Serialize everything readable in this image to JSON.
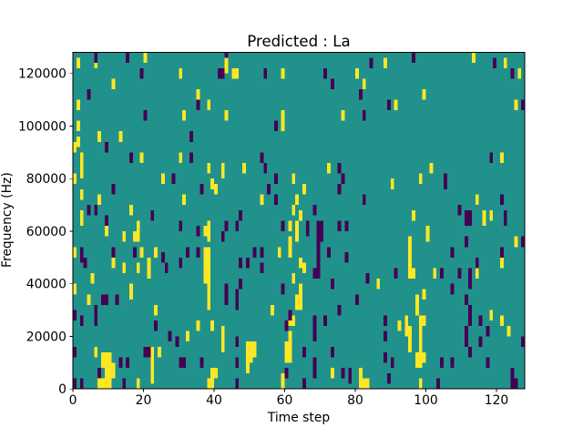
{
  "figure": {
    "title": "Predicted : La",
    "xlabel": "Time step",
    "ylabel": "Frequency (Hz)"
  },
  "chart_data": {
    "type": "heatmap",
    "title": "Predicted : La",
    "xlabel": "Time step",
    "ylabel": "Frequency (Hz)",
    "x_range": [
      0,
      128
    ],
    "y_range": [
      0,
      128000
    ],
    "xticks": [
      0,
      20,
      40,
      60,
      80,
      100,
      120
    ],
    "yticks": [
      0,
      20000,
      40000,
      60000,
      80000,
      100000,
      120000
    ],
    "grid": false,
    "legend": "none",
    "colormap": "viridis",
    "n_cols": 128,
    "n_rows": 64,
    "row_bin_hz": 2000,
    "colors": {
      "background": "#21918c",
      "high": "#fde725",
      "low": "#440154"
    },
    "values": {
      "base": 0.5,
      "high": 1.0,
      "low": 0.0
    },
    "cells": {
      "high": [
        [
          1,
          61,
          62
        ],
        [
          6,
          61,
          62
        ],
        [
          20,
          62,
          63
        ],
        [
          43,
          60,
          63
        ],
        [
          11,
          57,
          58
        ],
        [
          1,
          53,
          54
        ],
        [
          30,
          59,
          60
        ],
        [
          35,
          55,
          56
        ],
        [
          38,
          53,
          54
        ],
        [
          31,
          51,
          52
        ],
        [
          1,
          49,
          50
        ],
        [
          1,
          46,
          47
        ],
        [
          7,
          47,
          48
        ],
        [
          13,
          47,
          48
        ],
        [
          0,
          45,
          46
        ],
        [
          2,
          40,
          44
        ],
        [
          0,
          39,
          40
        ],
        [
          19,
          43,
          44
        ],
        [
          30,
          43,
          44
        ],
        [
          38,
          41,
          42
        ],
        [
          39,
          38,
          39
        ],
        [
          25,
          39,
          40
        ],
        [
          42,
          40,
          42
        ],
        [
          40,
          37,
          38
        ],
        [
          2,
          36,
          37
        ],
        [
          7,
          35,
          36
        ],
        [
          31,
          35,
          36
        ],
        [
          16,
          33,
          34
        ],
        [
          2,
          31,
          33
        ],
        [
          45,
          59,
          60
        ],
        [
          46,
          59,
          60
        ],
        [
          59,
          59,
          60
        ],
        [
          80,
          59,
          60
        ],
        [
          82,
          57,
          58
        ],
        [
          43,
          51,
          52
        ],
        [
          59,
          51,
          52
        ],
        [
          59,
          49,
          50
        ],
        [
          76,
          51,
          52
        ],
        [
          48,
          41,
          42
        ],
        [
          72,
          41,
          42
        ],
        [
          62,
          39,
          40
        ],
        [
          65,
          37,
          38
        ],
        [
          53,
          35,
          36
        ],
        [
          63,
          35,
          36
        ],
        [
          62,
          33,
          34
        ],
        [
          64,
          32,
          33
        ],
        [
          88,
          61,
          62
        ],
        [
          113,
          62,
          63
        ],
        [
          122,
          61,
          62
        ],
        [
          126,
          59,
          60
        ],
        [
          99,
          55,
          56
        ],
        [
          91,
          53,
          54
        ],
        [
          125,
          53,
          54
        ],
        [
          121,
          43,
          44
        ],
        [
          101,
          41,
          42
        ],
        [
          98,
          39,
          40
        ],
        [
          90,
          38,
          39
        ],
        [
          114,
          35,
          36
        ],
        [
          96,
          32,
          33
        ],
        [
          116,
          31,
          33
        ],
        [
          118,
          32,
          33
        ],
        [
          9,
          29,
          30
        ],
        [
          14,
          28,
          29
        ],
        [
          17,
          28,
          29
        ],
        [
          18,
          28,
          31
        ],
        [
          19,
          25,
          26
        ],
        [
          23,
          25,
          26
        ],
        [
          21,
          21,
          24
        ],
        [
          11,
          23,
          24
        ],
        [
          14,
          22,
          23
        ],
        [
          18,
          22,
          23
        ],
        [
          5,
          20,
          21
        ],
        [
          16,
          17,
          19
        ],
        [
          4,
          16,
          17
        ],
        [
          23,
          14,
          15
        ],
        [
          0,
          25,
          26
        ],
        [
          0,
          18,
          19
        ],
        [
          37,
          20,
          26
        ],
        [
          37,
          29,
          30
        ],
        [
          38,
          15,
          26
        ],
        [
          38,
          28,
          31
        ],
        [
          35,
          11,
          12
        ],
        [
          32,
          9,
          10
        ],
        [
          39,
          11,
          12
        ],
        [
          42,
          7,
          11
        ],
        [
          39,
          2,
          3
        ],
        [
          40,
          2,
          3
        ],
        [
          38,
          0,
          1
        ],
        [
          39,
          0,
          1
        ],
        [
          8,
          4,
          6
        ],
        [
          9,
          2,
          6
        ],
        [
          10,
          2,
          6
        ],
        [
          11,
          2,
          4
        ],
        [
          6,
          6,
          7
        ],
        [
          22,
          1,
          7
        ],
        [
          24,
          6,
          7
        ],
        [
          7,
          0,
          1
        ],
        [
          8,
          0,
          1
        ],
        [
          9,
          0,
          1
        ],
        [
          10,
          0,
          1
        ],
        [
          18,
          0,
          1
        ],
        [
          61,
          30,
          31
        ],
        [
          63,
          28,
          31
        ],
        [
          61,
          25,
          28
        ],
        [
          58,
          25,
          26
        ],
        [
          64,
          23,
          24
        ],
        [
          65,
          22,
          23
        ],
        [
          62,
          20,
          21
        ],
        [
          64,
          18,
          19
        ],
        [
          63,
          15,
          17
        ],
        [
          64,
          15,
          17
        ],
        [
          56,
          14,
          15
        ],
        [
          61,
          12,
          13
        ],
        [
          62,
          12,
          13
        ],
        [
          61,
          9,
          10
        ],
        [
          60,
          5,
          8
        ],
        [
          61,
          5,
          8
        ],
        [
          49,
          3,
          8
        ],
        [
          50,
          5,
          8
        ],
        [
          51,
          6,
          8
        ],
        [
          73,
          2,
          3
        ],
        [
          59,
          0,
          2
        ],
        [
          81,
          0,
          3
        ],
        [
          82,
          0,
          1
        ],
        [
          83,
          0,
          1
        ],
        [
          95,
          27,
          28
        ],
        [
          95,
          21,
          26
        ],
        [
          96,
          21,
          22
        ],
        [
          100,
          28,
          30
        ],
        [
          121,
          23,
          26
        ],
        [
          102,
          21,
          22
        ],
        [
          114,
          21,
          22
        ],
        [
          125,
          27,
          28
        ],
        [
          99,
          17,
          18
        ],
        [
          97,
          14,
          17
        ],
        [
          99,
          12,
          13
        ],
        [
          94,
          10,
          13
        ],
        [
          92,
          11,
          12
        ],
        [
          95,
          7,
          11
        ],
        [
          98,
          7,
          13
        ],
        [
          97,
          4,
          6
        ],
        [
          98,
          4,
          6
        ],
        [
          99,
          5,
          6
        ],
        [
          118,
          13,
          14
        ],
        [
          121,
          12,
          13
        ],
        [
          123,
          10,
          11
        ],
        [
          98,
          0,
          1
        ],
        [
          86,
          19,
          20
        ]
      ],
      "low": [
        [
          6,
          62,
          63
        ],
        [
          15,
          62,
          63
        ],
        [
          43,
          63,
          63
        ],
        [
          19,
          59,
          60
        ],
        [
          41,
          59,
          60
        ],
        [
          42,
          59,
          60
        ],
        [
          4,
          55,
          56
        ],
        [
          35,
          53,
          54
        ],
        [
          20,
          51,
          52
        ],
        [
          9,
          45,
          46
        ],
        [
          33,
          47,
          48
        ],
        [
          16,
          43,
          44
        ],
        [
          33,
          43,
          44
        ],
        [
          28,
          39,
          40
        ],
        [
          36,
          37,
          38
        ],
        [
          11,
          37,
          38
        ],
        [
          4,
          33,
          34
        ],
        [
          6,
          33,
          34
        ],
        [
          22,
          32,
          33
        ],
        [
          9,
          31,
          32
        ],
        [
          54,
          59,
          60
        ],
        [
          71,
          59,
          60
        ],
        [
          73,
          57,
          58
        ],
        [
          84,
          61,
          62
        ],
        [
          81,
          55,
          56
        ],
        [
          57,
          49,
          50
        ],
        [
          82,
          51,
          52
        ],
        [
          53,
          43,
          44
        ],
        [
          54,
          41,
          42
        ],
        [
          57,
          39,
          40
        ],
        [
          55,
          37,
          38
        ],
        [
          57,
          35,
          36
        ],
        [
          75,
          41,
          42
        ],
        [
          76,
          39,
          40
        ],
        [
          75,
          37,
          38
        ],
        [
          82,
          35,
          36
        ],
        [
          68,
          33,
          34
        ],
        [
          47,
          32,
          33
        ],
        [
          96,
          62,
          63
        ],
        [
          119,
          61,
          62
        ],
        [
          124,
          59,
          60
        ],
        [
          89,
          53,
          54
        ],
        [
          127,
          53,
          54
        ],
        [
          118,
          43,
          44
        ],
        [
          105,
          38,
          40
        ],
        [
          121,
          35,
          36
        ],
        [
          109,
          33,
          34
        ],
        [
          111,
          31,
          33
        ],
        [
          112,
          31,
          33
        ],
        [
          122,
          31,
          33
        ],
        [
          2,
          24,
          26
        ],
        [
          3,
          23,
          24
        ],
        [
          11,
          25,
          26
        ],
        [
          17,
          25,
          26
        ],
        [
          25,
          24,
          25
        ],
        [
          26,
          22,
          23
        ],
        [
          30,
          23,
          24
        ],
        [
          32,
          25,
          26
        ],
        [
          35,
          25,
          26
        ],
        [
          30,
          30,
          31
        ],
        [
          35,
          29,
          30
        ],
        [
          42,
          28,
          29
        ],
        [
          0,
          13,
          14
        ],
        [
          2,
          12,
          13
        ],
        [
          6,
          14,
          15
        ],
        [
          8,
          16,
          17
        ],
        [
          9,
          16,
          17
        ],
        [
          12,
          16,
          17
        ],
        [
          6,
          12,
          13
        ],
        [
          23,
          11,
          12
        ],
        [
          27,
          9,
          10
        ],
        [
          29,
          8,
          9
        ],
        [
          20,
          6,
          7
        ],
        [
          21,
          6,
          7
        ],
        [
          13,
          4,
          5
        ],
        [
          15,
          4,
          5
        ],
        [
          30,
          4,
          5
        ],
        [
          31,
          4,
          5
        ],
        [
          36,
          4,
          5
        ],
        [
          0,
          6,
          7
        ],
        [
          7,
          2,
          3
        ],
        [
          2,
          0,
          1
        ],
        [
          0,
          0,
          1
        ],
        [
          14,
          0,
          1
        ],
        [
          43,
          30,
          31
        ],
        [
          46,
          30,
          31
        ],
        [
          59,
          30,
          31
        ],
        [
          66,
          29,
          31
        ],
        [
          69,
          21,
          31
        ],
        [
          70,
          28,
          31
        ],
        [
          68,
          21,
          22
        ],
        [
          75,
          30,
          31
        ],
        [
          77,
          30,
          31
        ],
        [
          51,
          25,
          26
        ],
        [
          53,
          25,
          26
        ],
        [
          72,
          25,
          26
        ],
        [
          47,
          23,
          24
        ],
        [
          49,
          23,
          24
        ],
        [
          53,
          22,
          23
        ],
        [
          77,
          24,
          25
        ],
        [
          47,
          19,
          20
        ],
        [
          43,
          16,
          19
        ],
        [
          46,
          15,
          18
        ],
        [
          73,
          19,
          20
        ],
        [
          83,
          20,
          21
        ],
        [
          80,
          16,
          17
        ],
        [
          75,
          14,
          15
        ],
        [
          59,
          18,
          19
        ],
        [
          61,
          13,
          14
        ],
        [
          60,
          11,
          12
        ],
        [
          68,
          9,
          13
        ],
        [
          71,
          12,
          13
        ],
        [
          46,
          8,
          9
        ],
        [
          46,
          4,
          5
        ],
        [
          65,
          6,
          7
        ],
        [
          60,
          2,
          3
        ],
        [
          68,
          2,
          5
        ],
        [
          73,
          6,
          7
        ],
        [
          76,
          2,
          3
        ],
        [
          78,
          1,
          3
        ],
        [
          46,
          0,
          1
        ],
        [
          65,
          0,
          1
        ],
        [
          111,
          27,
          28
        ],
        [
          107,
          25,
          26
        ],
        [
          114,
          23,
          24
        ],
        [
          121,
          25,
          26
        ],
        [
          127,
          27,
          28
        ],
        [
          91,
          21,
          22
        ],
        [
          104,
          21,
          22
        ],
        [
          109,
          21,
          22
        ],
        [
          112,
          19,
          22
        ],
        [
          107,
          18,
          19
        ],
        [
          111,
          16,
          17
        ],
        [
          112,
          12,
          15
        ],
        [
          115,
          12,
          13
        ],
        [
          117,
          10,
          11
        ],
        [
          111,
          8,
          11
        ],
        [
          115,
          8,
          9
        ],
        [
          112,
          6,
          7
        ],
        [
          88,
          12,
          13
        ],
        [
          88,
          9,
          10
        ],
        [
          88,
          5,
          6
        ],
        [
          90,
          4,
          5
        ],
        [
          89,
          1,
          2
        ],
        [
          104,
          4,
          5
        ],
        [
          107,
          4,
          5
        ],
        [
          103,
          0,
          1
        ],
        [
          117,
          4,
          5
        ],
        [
          127,
          8,
          9
        ],
        [
          124,
          0,
          3
        ],
        [
          125,
          0,
          1
        ]
      ]
    }
  }
}
